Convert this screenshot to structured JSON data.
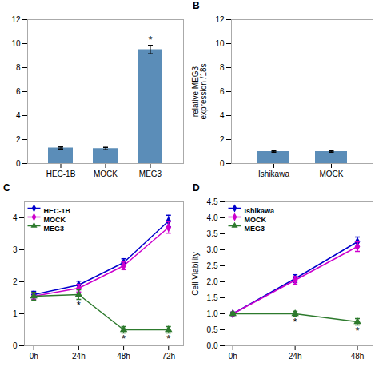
{
  "chart_data": [
    {
      "type": "bar",
      "categories": [
        "HEC-1B",
        "MOCK",
        "MEG3"
      ],
      "values": [
        1.3,
        1.25,
        9.5
      ],
      "errors": [
        0.08,
        0.1,
        0.35
      ],
      "color": "#5b8db8",
      "ylim": [
        0,
        12
      ],
      "yticks": [
        0,
        2,
        4,
        6,
        8,
        10,
        12
      ],
      "annotations": [
        {
          "text": "*",
          "x": "MEG3"
        }
      ]
    },
    {
      "type": "bar",
      "title": "B",
      "ylabel": "relative MEG3\nexpression /18s",
      "categories": [
        "Ishikawa",
        "MOCK"
      ],
      "values": [
        1.0,
        1.0
      ],
      "errors": [
        0.05,
        0.05
      ],
      "color": "#5b8db8",
      "ylim": [
        0,
        12
      ],
      "yticks": [
        0,
        2,
        4,
        6,
        8,
        10,
        12
      ]
    },
    {
      "type": "line",
      "title": "C",
      "x": [
        0,
        24,
        48,
        72
      ],
      "xlim": [
        -5,
        80
      ],
      "xticks": [
        {
          "value": 0,
          "label": "0h"
        },
        {
          "value": 24,
          "label": "24h"
        },
        {
          "value": 48,
          "label": "48h"
        },
        {
          "value": 72,
          "label": "72h"
        }
      ],
      "ylim": [
        0,
        4.5
      ],
      "yticks": [
        0,
        1,
        2,
        3,
        4
      ],
      "legend": "upper left",
      "series": [
        {
          "name": "HEC-1B",
          "color": "#0000cc",
          "marker": "diamond",
          "values": [
            1.6,
            1.9,
            2.6,
            3.9
          ],
          "errors": [
            0.1,
            0.12,
            0.12,
            0.18
          ]
        },
        {
          "name": "MOCK",
          "color": "#cc00cc",
          "marker": "diamond",
          "values": [
            1.55,
            1.8,
            2.5,
            3.7
          ],
          "errors": [
            0.1,
            0.12,
            0.12,
            0.18
          ]
        },
        {
          "name": "MEG3",
          "color": "#2d7a2d",
          "marker": "triangle",
          "values": [
            1.55,
            1.6,
            0.5,
            0.5
          ],
          "errors": [
            0.12,
            0.15,
            0.1,
            0.1
          ]
        }
      ],
      "annotations": [
        {
          "text": "*",
          "x": 24,
          "series": "MEG3"
        },
        {
          "text": "*",
          "x": 48,
          "series": "MEG3"
        },
        {
          "text": "*",
          "x": 72,
          "series": "MEG3"
        }
      ]
    },
    {
      "type": "line",
      "title": "D",
      "ylabel": "Cell Viability",
      "x": [
        0,
        24,
        48
      ],
      "xlim": [
        -3,
        54
      ],
      "xticks": [
        {
          "value": 0,
          "label": "0h"
        },
        {
          "value": 24,
          "label": "24h"
        },
        {
          "value": 48,
          "label": "48h"
        }
      ],
      "ylim": [
        0.0,
        4.5
      ],
      "yticks": [
        {
          "value": 0.0,
          "label": "0.0"
        },
        0.5,
        {
          "value": 1.0,
          "label": "1.0"
        },
        1.5,
        {
          "value": 2.0,
          "label": "2.0"
        },
        2.5,
        {
          "value": 3.0,
          "label": "3.0"
        },
        3.5,
        {
          "value": 4.0,
          "label": "4.0"
        },
        4.5
      ],
      "legend": "upper left",
      "series": [
        {
          "name": "Ishikawa",
          "color": "#0000cc",
          "marker": "diamond",
          "values": [
            1.0,
            2.1,
            3.25
          ],
          "errors": [
            0.05,
            0.12,
            0.15
          ]
        },
        {
          "name": "MOCK",
          "color": "#cc00cc",
          "marker": "diamond",
          "values": [
            1.0,
            2.05,
            3.1
          ],
          "errors": [
            0.05,
            0.12,
            0.15
          ]
        },
        {
          "name": "MEG3",
          "color": "#2d7a2d",
          "marker": "triangle",
          "values": [
            1.0,
            1.0,
            0.75
          ],
          "errors": [
            0.05,
            0.08,
            0.1
          ]
        }
      ],
      "annotations": [
        {
          "text": "*",
          "x": 24,
          "series": "MEG3"
        },
        {
          "text": "*",
          "x": 48,
          "series": "MEG3"
        }
      ]
    }
  ]
}
